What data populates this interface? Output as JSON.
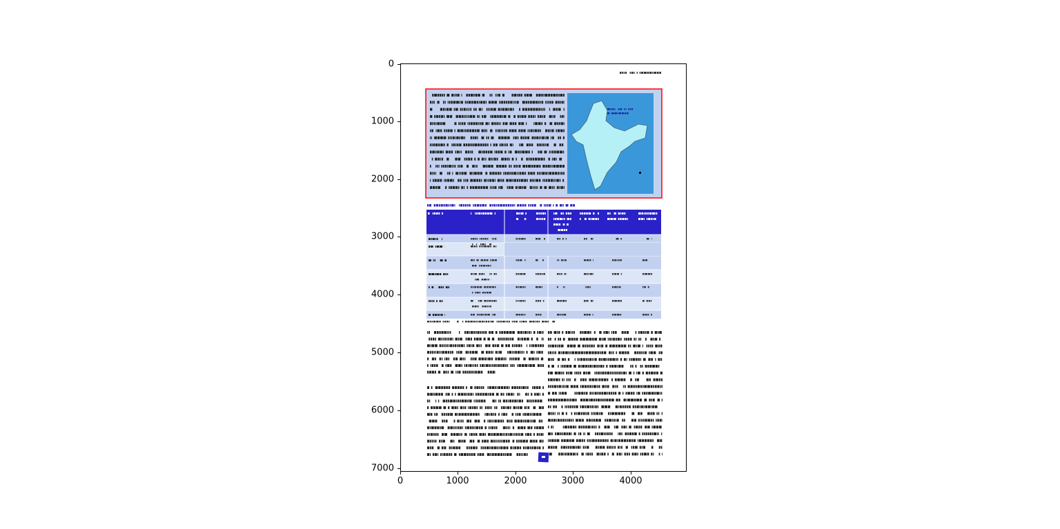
{
  "figure": {
    "x_ticks": [
      "0",
      "1000",
      "2000",
      "3000",
      "4000"
    ],
    "y_ticks": [
      "0",
      "1000",
      "2000",
      "3000",
      "4000",
      "5000",
      "6000",
      "7000"
    ],
    "x_range": [
      0,
      4970
    ],
    "y_range": [
      7060,
      0
    ]
  },
  "document": {
    "content_note_visible": false,
    "colors": {
      "panel_fill": "#c3d1f1",
      "panel_border": "#ff0000",
      "map_bg": "#3a98da",
      "table_header": "#2a22c8",
      "row_dark": "#c3d1f1",
      "row_light": "#dce6f6",
      "logo": "#2a22c8"
    },
    "map_icon": "india-map"
  }
}
